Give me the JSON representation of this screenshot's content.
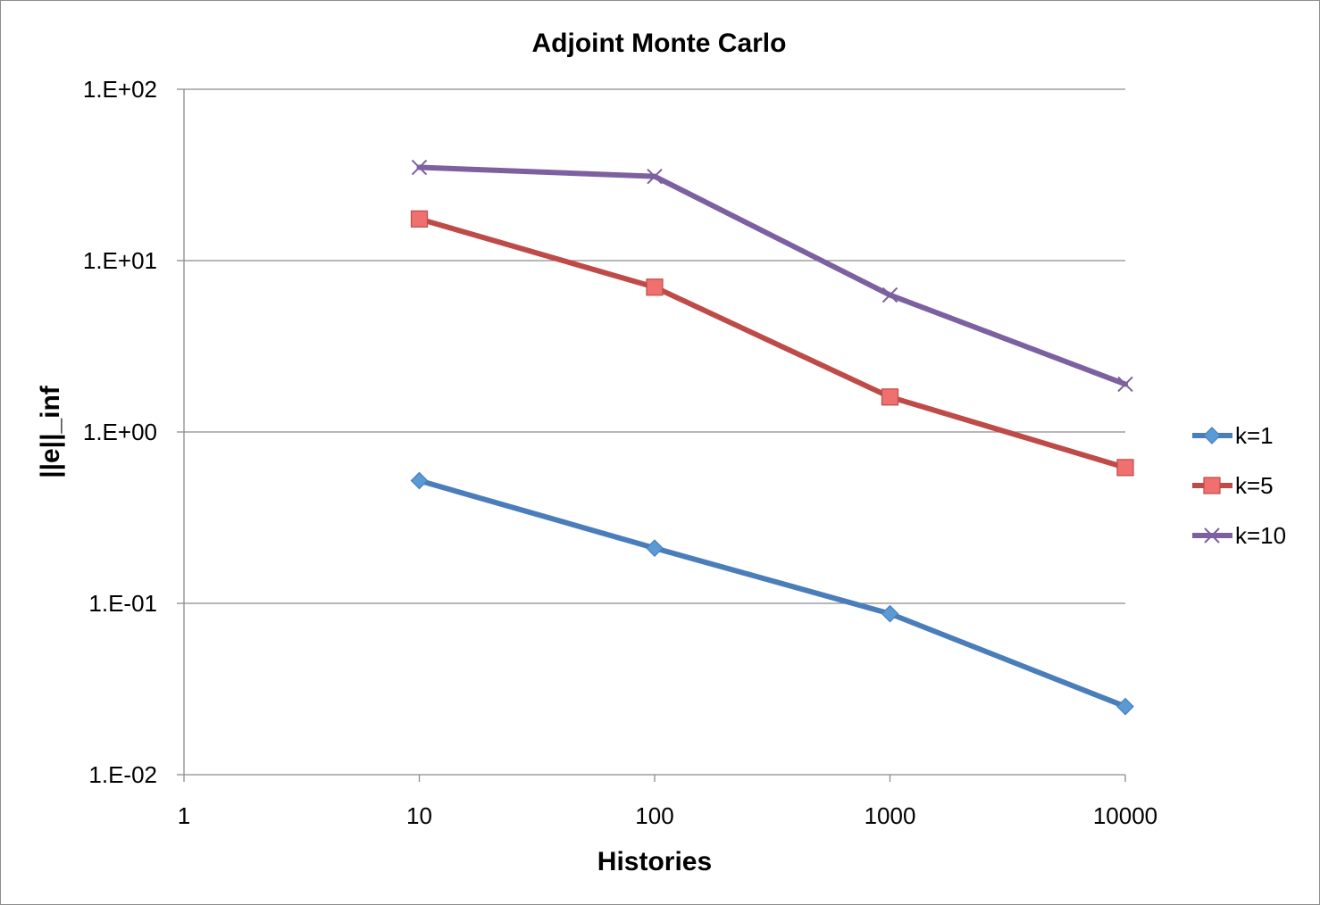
{
  "chart_data": {
    "type": "line",
    "title": "Adjoint Monte Carlo",
    "xlabel": "Histories",
    "ylabel": "||e||_inf",
    "x_scale": "log",
    "y_scale": "log",
    "xlim": [
      1,
      10000
    ],
    "ylim": [
      0.01,
      100
    ],
    "x_tick_labels": [
      "1",
      "10",
      "100",
      "1000",
      "10000"
    ],
    "x_ticks": [
      1,
      10,
      100,
      1000,
      10000
    ],
    "y_tick_labels": [
      "1.E-02",
      "1.E-01",
      "1.E+00",
      "1.E+01",
      "1.E+02"
    ],
    "y_ticks": [
      0.01,
      0.1,
      1,
      10,
      100
    ],
    "grid": "horizontal major gridlines",
    "legend_position": "right",
    "x": [
      10,
      100,
      1000,
      10000
    ],
    "series": [
      {
        "name": "k=1",
        "marker": "diamond",
        "color": "#4a7ebb",
        "marker_fill": "#5b9bd5",
        "values": [
          0.52,
          0.21,
          0.087,
          0.025
        ]
      },
      {
        "name": "k=5",
        "marker": "square",
        "color": "#be4b48",
        "marker_fill": "#f07070",
        "values": [
          17.5,
          7.0,
          1.6,
          0.62
        ]
      },
      {
        "name": "k=10",
        "marker": "x",
        "color": "#7d60a0",
        "marker_fill": "#7d60a0",
        "values": [
          35,
          31,
          6.3,
          1.9
        ]
      }
    ]
  }
}
